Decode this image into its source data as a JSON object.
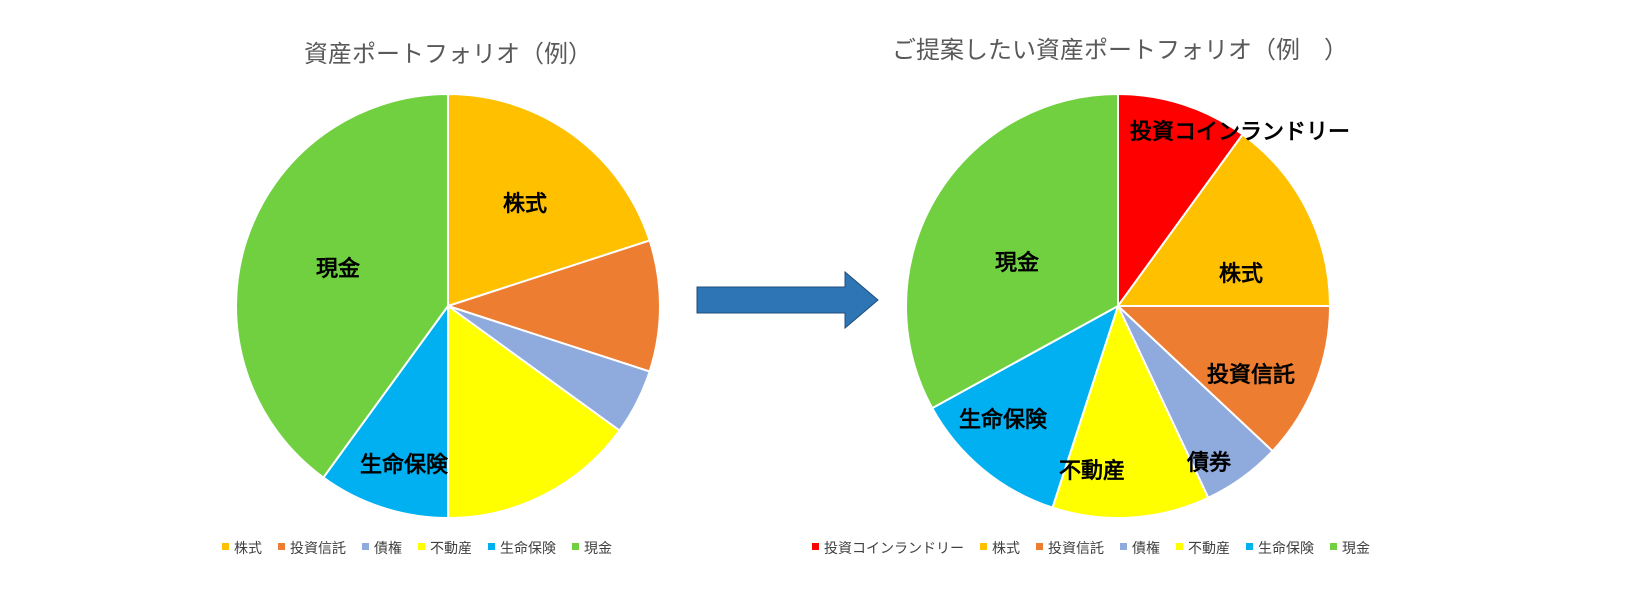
{
  "chart_data": [
    {
      "type": "pie",
      "title": "資産ポートフォリオ（例）",
      "legend_position": "bottom",
      "slices": [
        {
          "label": "株式",
          "value": 20,
          "color": "#FFC000",
          "show_label": true
        },
        {
          "label": "投資信託",
          "value": 10,
          "color": "#ED7D31",
          "show_label": false
        },
        {
          "label": "債権",
          "value": 5,
          "color": "#8FAADC",
          "show_label": false
        },
        {
          "label": "不動産",
          "value": 15,
          "color": "#FFFF00",
          "show_label": false
        },
        {
          "label": "生命保険",
          "value": 10,
          "color": "#00B0F0",
          "show_label": true
        },
        {
          "label": "現金",
          "value": 40,
          "color": "#70D040",
          "show_label": true
        }
      ]
    },
    {
      "type": "pie",
      "title": "ご提案したい資産ポートフォリオ（例　）",
      "legend_position": "bottom",
      "slices": [
        {
          "label": "投資コインランドリー",
          "value": 10,
          "color": "#FF0000",
          "show_label": true
        },
        {
          "label": "株式",
          "value": 15,
          "color": "#FFC000",
          "show_label": true
        },
        {
          "label": "投資信託",
          "value": 12,
          "color": "#ED7D31",
          "show_label": true
        },
        {
          "label": "債権",
          "value": 6,
          "color": "#8FAADC",
          "show_label": false,
          "display_label": "債券"
        },
        {
          "label": "不動産",
          "value": 12,
          "color": "#FFFF00",
          "show_label": true
        },
        {
          "label": "生命保険",
          "value": 12,
          "color": "#00B0F0",
          "show_label": true
        },
        {
          "label": "現金",
          "value": 33,
          "color": "#70D040",
          "show_label": true
        }
      ]
    }
  ],
  "arrow": {
    "color": "#2E75B6",
    "icon": "right-arrow-icon"
  }
}
